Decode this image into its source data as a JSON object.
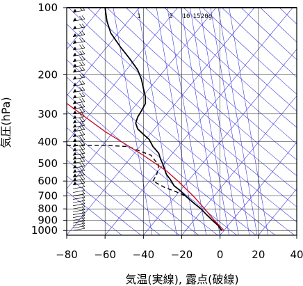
{
  "chart_data": {
    "type": "line",
    "xlabel": "気温(実線), 露点(破線)",
    "ylabel": "気圧(hPa)",
    "xlim": [
      -80,
      40
    ],
    "ylim": [
      1050,
      100
    ],
    "y_scale": "log",
    "x_ticks": [
      -80,
      -60,
      -40,
      -20,
      0,
      20,
      40
    ],
    "y_ticks": [
      100,
      200,
      300,
      400,
      500,
      600,
      700,
      800,
      900,
      1000
    ],
    "mixing_ratio_labels": [
      "1",
      "5",
      "10",
      "15",
      "20g"
    ],
    "grid": true,
    "series": [
      {
        "style": "solid",
        "color": "#000000",
        "points": [
          [
            -60,
            100
          ],
          [
            -59,
            115
          ],
          [
            -57,
            130
          ],
          [
            -52,
            150
          ],
          [
            -47,
            170
          ],
          [
            -43,
            190
          ],
          [
            -41,
            210
          ],
          [
            -40,
            230
          ],
          [
            -39,
            250
          ],
          [
            -39,
            270
          ],
          [
            -41,
            290
          ],
          [
            -43,
            310
          ],
          [
            -44,
            330
          ],
          [
            -43,
            350
          ],
          [
            -40,
            370
          ],
          [
            -37,
            390
          ],
          [
            -35,
            420
          ],
          [
            -32,
            450
          ],
          [
            -31,
            480
          ],
          [
            -30,
            500
          ],
          [
            -29,
            530
          ],
          [
            -28,
            560
          ],
          [
            -26,
            590
          ],
          [
            -24,
            630
          ],
          [
            -21,
            660
          ],
          [
            -18,
            700
          ],
          [
            -14,
            750
          ],
          [
            -10,
            800
          ],
          [
            -7,
            850
          ],
          [
            -4,
            900
          ],
          [
            -1,
            950
          ],
          [
            0,
            980
          ],
          [
            1,
            1000
          ]
        ]
      },
      {
        "style": "dashed",
        "color": "#000000",
        "points": [
          [
            -80,
            415
          ],
          [
            -60,
            415
          ],
          [
            -48,
            420
          ],
          [
            -36,
            460
          ],
          [
            -32,
            510
          ],
          [
            -33,
            560
          ],
          [
            -35,
            600
          ],
          [
            -29,
            640
          ],
          [
            -23,
            670
          ],
          [
            -18,
            700
          ],
          [
            -14,
            750
          ],
          [
            -10,
            800
          ],
          [
            -7,
            850
          ],
          [
            -4,
            900
          ],
          [
            -1,
            950
          ],
          [
            0,
            980
          ],
          [
            1,
            1000
          ]
        ]
      },
      {
        "style": "solid",
        "color": "#c8102e",
        "points": [
          [
            -81,
            265
          ],
          [
            -60,
            360
          ],
          [
            -40,
            460
          ],
          [
            -28,
            540
          ],
          [
            -22,
            600
          ],
          [
            -14,
            700
          ],
          [
            -8,
            800
          ],
          [
            -3,
            900
          ],
          [
            0,
            960
          ],
          [
            2,
            1000
          ]
        ]
      }
    ],
    "dry_adiabat_thetas": [
      -40,
      -30,
      -20,
      -10,
      0,
      10,
      20,
      30,
      40,
      50,
      60,
      70,
      80,
      90,
      100,
      110,
      120,
      130,
      140,
      150,
      160,
      170,
      180,
      190,
      200,
      210,
      220,
      230,
      240,
      250,
      260,
      270
    ],
    "mixing_ratios_gkg": [
      0.4,
      1,
      2,
      3,
      5,
      7,
      10,
      15,
      20,
      30
    ],
    "wind_barb_pressures": [
      105,
      115,
      125,
      135,
      145,
      155,
      165,
      175,
      185,
      195,
      210,
      225,
      240,
      255,
      270,
      285,
      300,
      315,
      330,
      345,
      360,
      380,
      400,
      420,
      440,
      460,
      480,
      500,
      525,
      550,
      575,
      600,
      625,
      650,
      675,
      700,
      725,
      750,
      775,
      800,
      825,
      850,
      875,
      900,
      925,
      950,
      975,
      1000
    ],
    "colors": {
      "guide_lines": "#3a3ae0",
      "profile": "#000000",
      "parcel": "#c8102e",
      "grid": "#000000"
    }
  }
}
